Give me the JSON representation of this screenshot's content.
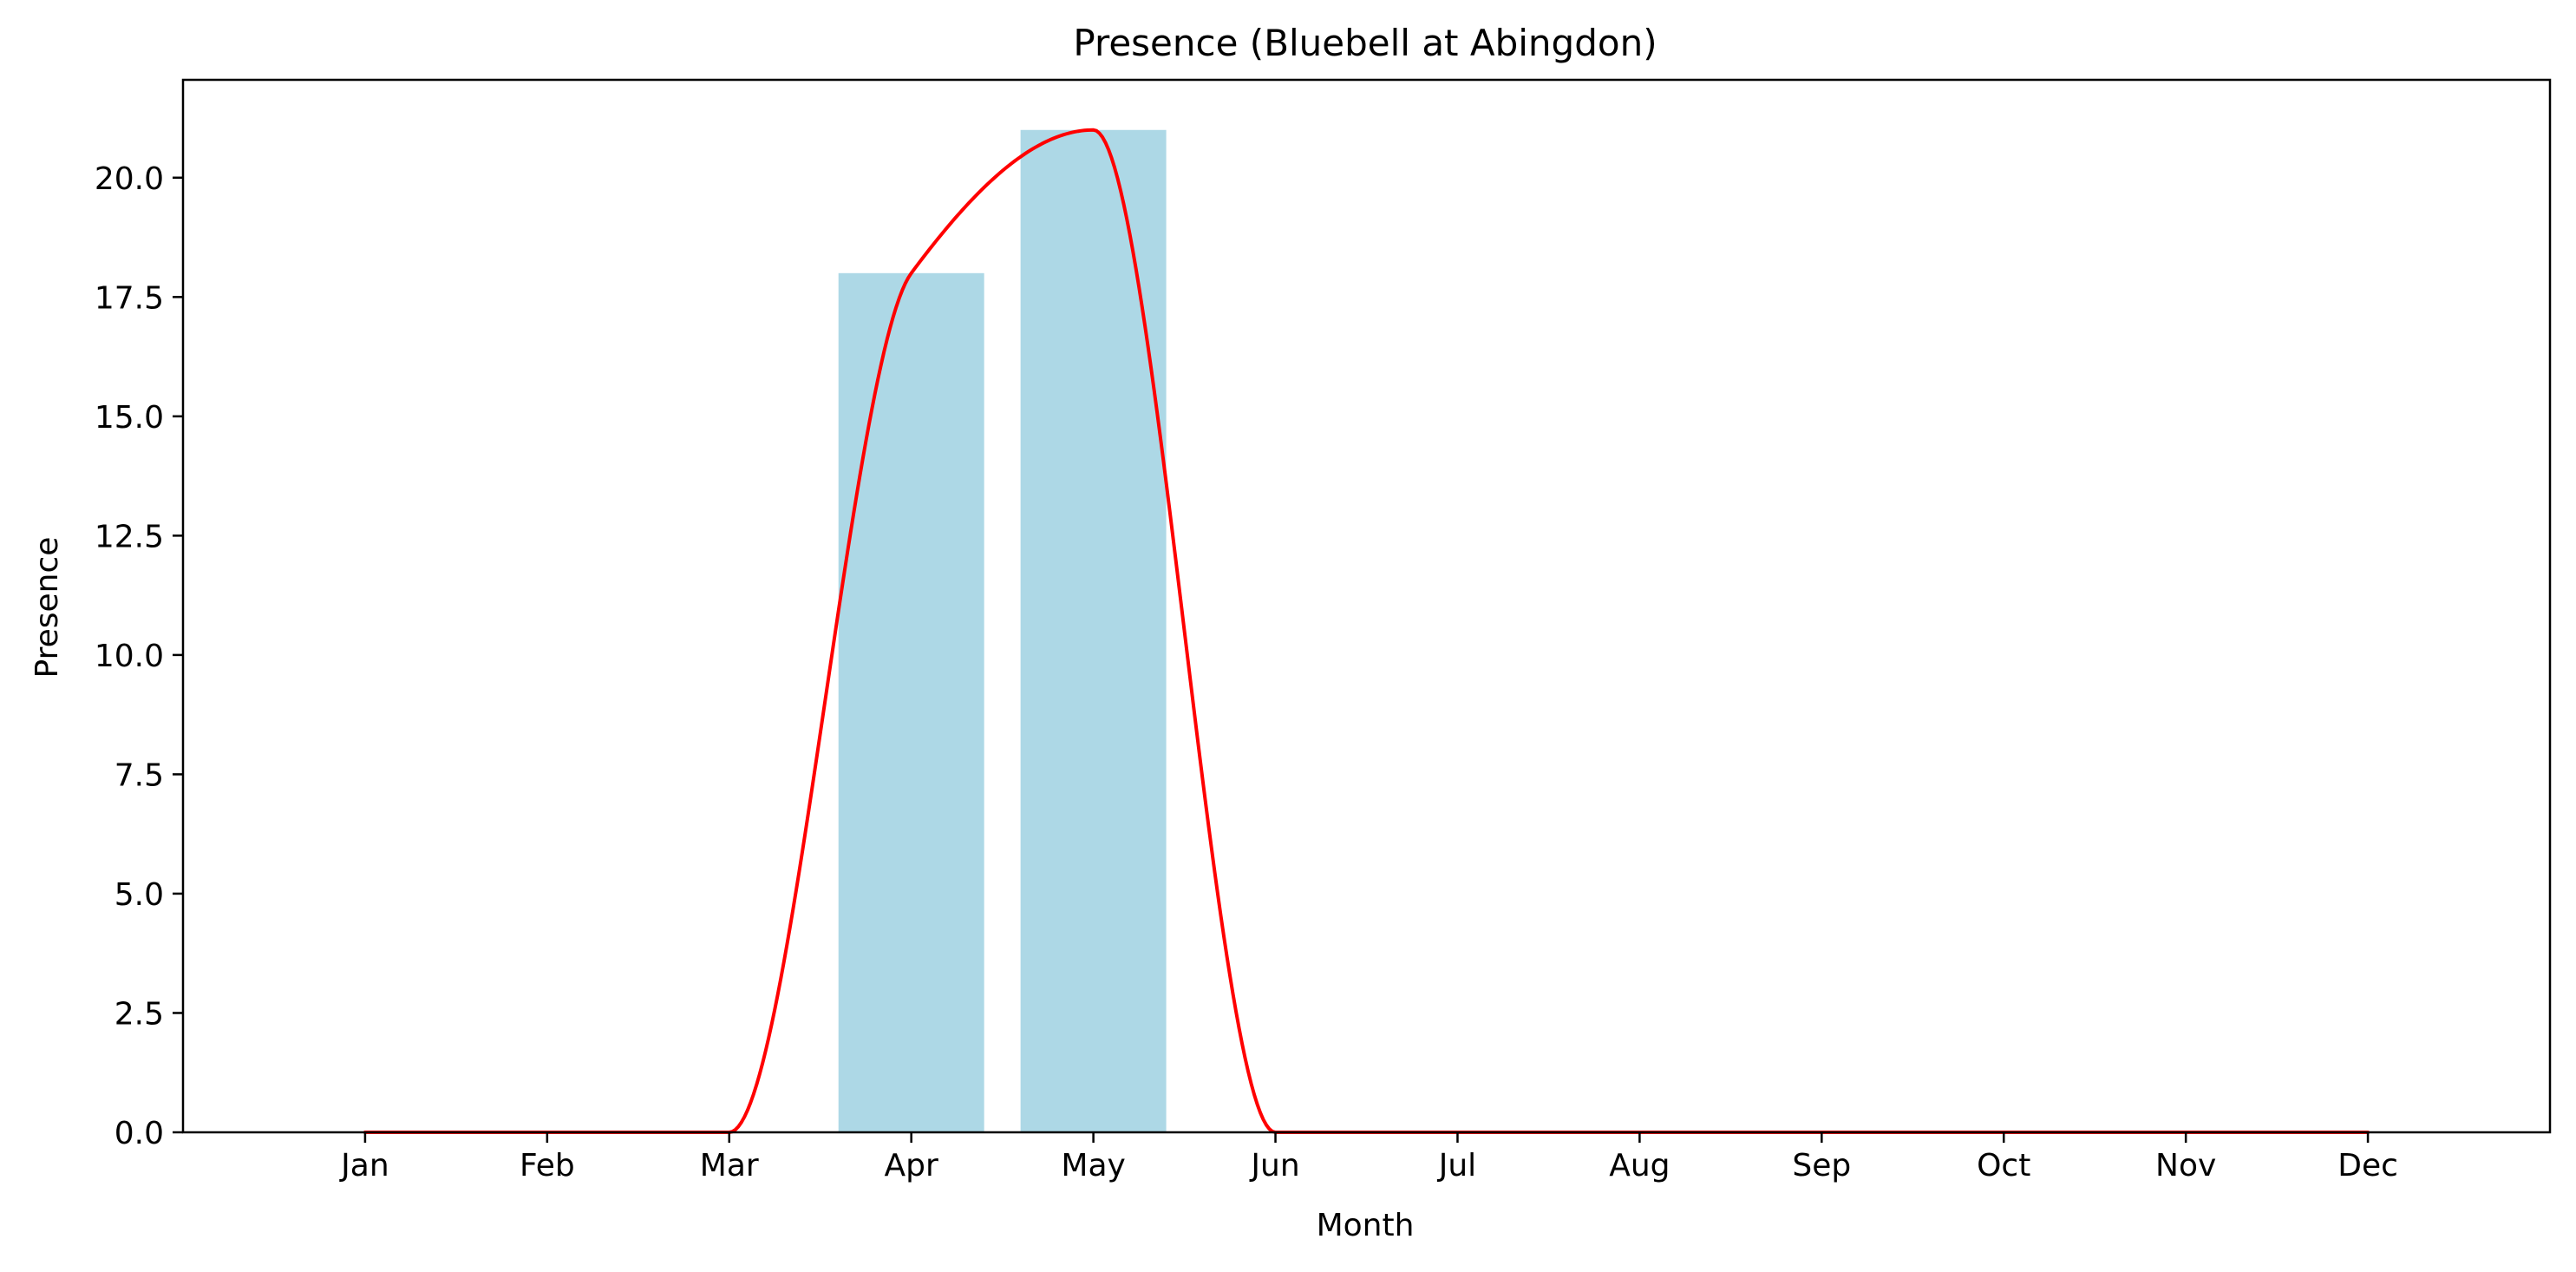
{
  "chart_data": {
    "type": "bar",
    "title": "Presence (Bluebell at Abingdon)",
    "xlabel": "Month",
    "ylabel": "Presence",
    "categories": [
      "Jan",
      "Feb",
      "Mar",
      "Apr",
      "May",
      "Jun",
      "Jul",
      "Aug",
      "Sep",
      "Oct",
      "Nov",
      "Dec"
    ],
    "series": [
      {
        "type": "bar",
        "values": [
          0,
          0,
          0,
          18,
          21,
          0,
          0,
          0,
          0,
          0,
          0,
          0
        ],
        "color": "#add8e6"
      },
      {
        "type": "line",
        "values": [
          0,
          0,
          0,
          18,
          21,
          0,
          0,
          0,
          0,
          0,
          0,
          0
        ],
        "color": "#ff0000",
        "smooth": true
      }
    ],
    "ylim": [
      0,
      22.05
    ],
    "xlim": [
      -1,
      12
    ],
    "yticks": [
      0.0,
      2.5,
      5.0,
      7.5,
      10.0,
      12.5,
      15.0,
      17.5,
      20.0
    ],
    "yticklabels": [
      "0.0",
      "2.5",
      "5.0",
      "7.5",
      "10.0",
      "12.5",
      "15.0",
      "17.5",
      "20.0"
    ],
    "grid": false,
    "legend": "none"
  }
}
